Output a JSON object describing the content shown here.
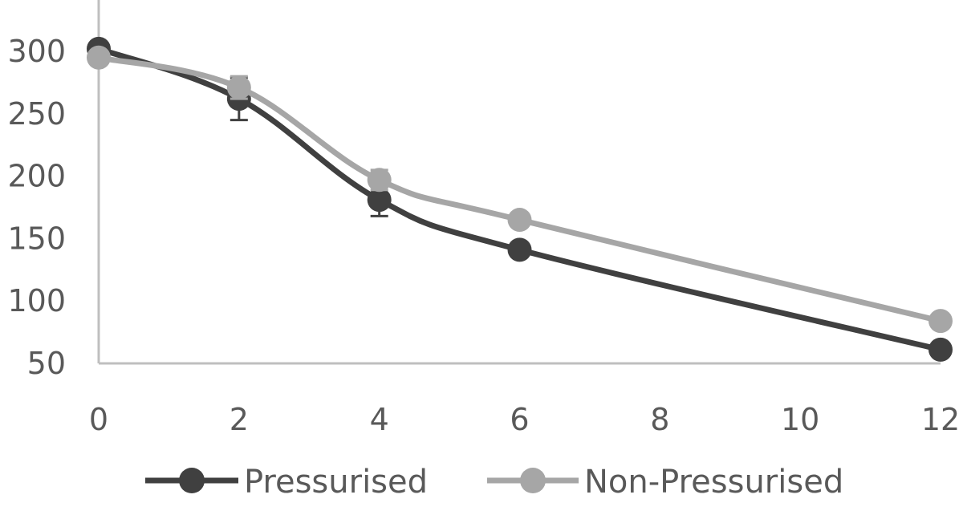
{
  "chart_data": {
    "type": "line",
    "title": "",
    "xlabel": "",
    "ylabel": "",
    "x": [
      0,
      2,
      4,
      6,
      12
    ],
    "xlim": [
      0,
      12
    ],
    "ylim": [
      50,
      300
    ],
    "x_ticks": [
      "0",
      "2",
      "4",
      "6",
      "8",
      "10",
      "12"
    ],
    "y_ticks": [
      "50",
      "100",
      "150",
      "200",
      "250",
      "300"
    ],
    "grid": false,
    "smooth": true,
    "legend_position": "bottom",
    "series": [
      {
        "name": "Pressurised",
        "color": "#404040",
        "values": [
          302,
          262,
          181,
          141,
          61
        ],
        "error": [
          0,
          17,
          13,
          0,
          0
        ]
      },
      {
        "name": "Non-Pressurised",
        "color": "#a6a6a6",
        "values": [
          295,
          271,
          197,
          165,
          84
        ],
        "error": [
          0,
          9,
          8,
          0,
          0
        ]
      }
    ]
  }
}
